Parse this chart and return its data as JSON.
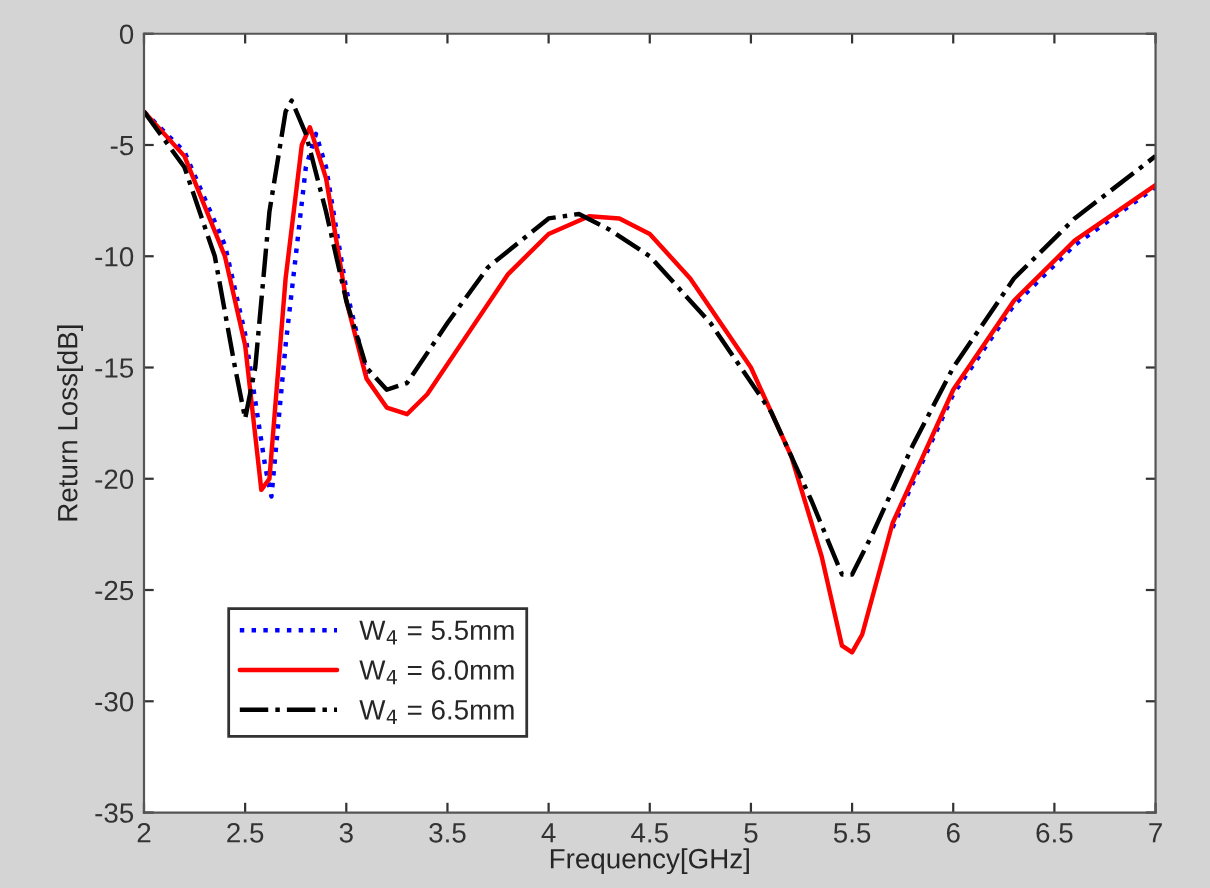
{
  "chart_data": {
    "type": "line",
    "xlabel": "Frequency[GHz]",
    "ylabel": "Return Loss[dB]",
    "xlim": [
      2,
      7
    ],
    "ylim": [
      -35,
      0
    ],
    "xticks": [
      2,
      2.5,
      3,
      3.5,
      4,
      4.5,
      5,
      5.5,
      6,
      6.5,
      7
    ],
    "yticks": [
      -35,
      -30,
      -25,
      -20,
      -15,
      -10,
      -5,
      0
    ],
    "grid": false,
    "legend": "bottom left",
    "series": [
      {
        "name": "W$_{4}$ = 5.5mm",
        "color": "#0000ff",
        "line_style": "dotted",
        "x": [
          2.0,
          2.2,
          2.4,
          2.5,
          2.6,
          2.63,
          2.7,
          2.8,
          2.85,
          2.9,
          3.0,
          3.1,
          3.2,
          3.3,
          3.4,
          3.6,
          3.8,
          4.0,
          4.2,
          4.35,
          4.5,
          4.7,
          5.0,
          5.2,
          5.35,
          5.45,
          5.5,
          5.55,
          5.7,
          6.0,
          6.3,
          6.6,
          7.0
        ],
        "values": [
          -3.5,
          -5.3,
          -9.5,
          -13.5,
          -19.5,
          -20.8,
          -14,
          -6,
          -4.5,
          -6,
          -11.5,
          -15.3,
          null,
          null,
          null,
          null,
          null,
          null,
          null,
          null,
          null,
          null,
          null,
          null,
          null,
          null,
          null,
          null,
          -22.2,
          -16.2,
          -12.2,
          -9.5,
          -6.9
        ]
      },
      {
        "name": "W$_{4}$ = 6.0mm",
        "color": "#ff0000",
        "line_style": "solid",
        "x": [
          2.0,
          2.2,
          2.4,
          2.5,
          2.58,
          2.62,
          2.7,
          2.78,
          2.82,
          2.9,
          3.0,
          3.1,
          3.2,
          3.3,
          3.4,
          3.6,
          3.8,
          4.0,
          4.2,
          4.35,
          4.5,
          4.7,
          5.0,
          5.2,
          5.35,
          5.45,
          5.5,
          5.55,
          5.7,
          6.0,
          6.3,
          6.6,
          7.0
        ],
        "values": [
          -3.5,
          -5.5,
          -10,
          -14,
          -20.5,
          -20,
          -11,
          -5,
          -4.2,
          -6.5,
          -12,
          -15.5,
          -16.8,
          -17.1,
          -16.2,
          -13.5,
          -10.8,
          -9,
          -8.2,
          -8.3,
          -9,
          -11,
          -15,
          -19,
          -23.5,
          -27.5,
          -27.8,
          -27,
          -22,
          -16,
          -12,
          -9.3,
          -6.8
        ]
      },
      {
        "name": "W$_{4}$ = 6.5mm",
        "color": "#000000",
        "line_style": "dashdot",
        "x": [
          2.0,
          2.2,
          2.35,
          2.45,
          2.5,
          2.55,
          2.62,
          2.7,
          2.73,
          2.8,
          2.9,
          3.0,
          3.1,
          3.2,
          3.3,
          3.5,
          3.7,
          4.0,
          4.15,
          4.3,
          4.5,
          4.8,
          5.1,
          5.3,
          5.45,
          5.5,
          5.6,
          5.8,
          6.0,
          6.3,
          6.6,
          7.0
        ],
        "values": [
          -3.5,
          -6,
          -10,
          -15,
          -17.3,
          -15,
          -8,
          -3.5,
          -3,
          -4.5,
          -8,
          -12,
          -15,
          -16,
          -15.7,
          -13,
          -10.5,
          -8.3,
          -8.1,
          -8.8,
          -10,
          -13,
          -17,
          -21,
          -24.3,
          -24.3,
          -22.5,
          -18.5,
          -15,
          -11,
          -8.3,
          -5.5
        ]
      }
    ]
  }
}
